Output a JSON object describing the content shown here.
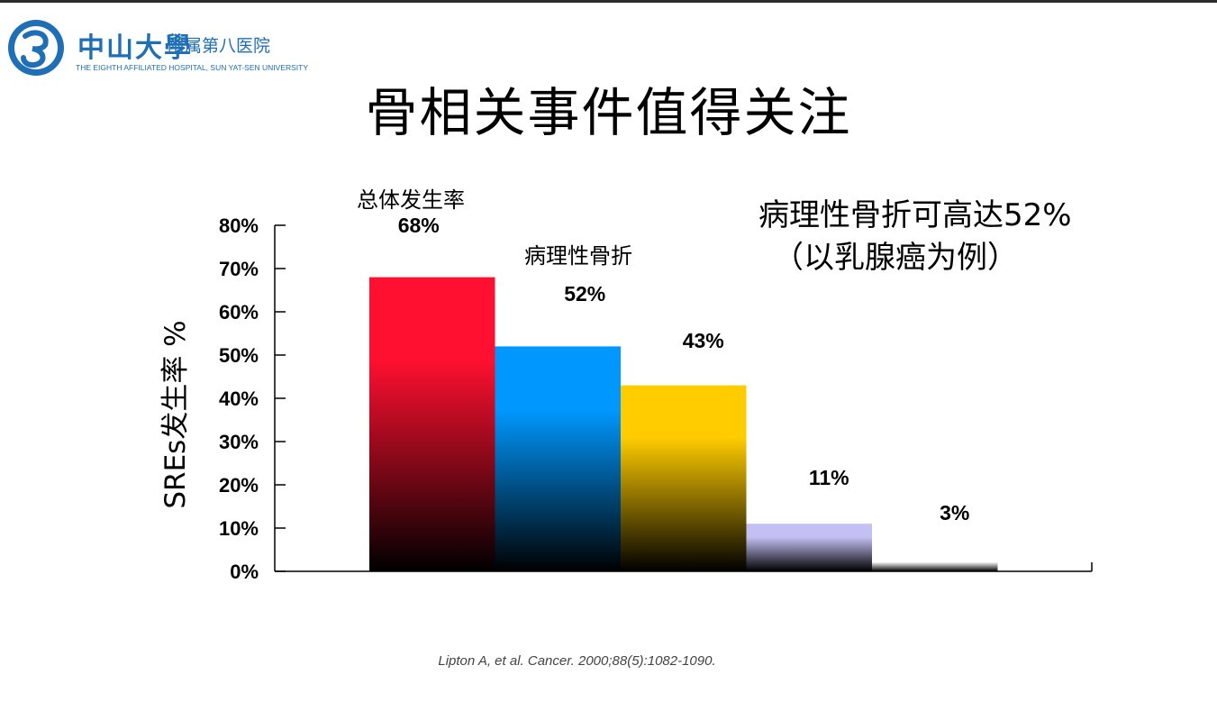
{
  "header": {
    "logo_cn": "中山大學",
    "logo_sub": "附属第八医院",
    "logo_en": "THE EIGHTH AFFILIATED HOSPITAL, SUN YAT-SEN UNIVERSITY"
  },
  "title": "骨相关事件值得关注",
  "annotations": {
    "bar1": "总体发生率",
    "bar2": "病理性骨折",
    "note_line1": "病理性骨折可高达52%",
    "note_line2": "（以乳腺癌为例）"
  },
  "citation": "Lipton A, et al. Cancer. 2000;88(5):1082-1090.",
  "chart_data": {
    "type": "bar",
    "ylabel": "SREs发生率 %",
    "ylim": [
      0,
      80
    ],
    "yticks": [
      "0%",
      "10%",
      "20%",
      "30%",
      "40%",
      "50%",
      "60%",
      "70%",
      "80%"
    ],
    "values": [
      68,
      52,
      43,
      11,
      3
    ],
    "value_labels": [
      "68%",
      "52%",
      "43%",
      "11%",
      "3%"
    ],
    "colors": [
      "#ff1030",
      "#0098ff",
      "#ffcc00",
      "#c4c0f4",
      "#ffffff"
    ]
  }
}
